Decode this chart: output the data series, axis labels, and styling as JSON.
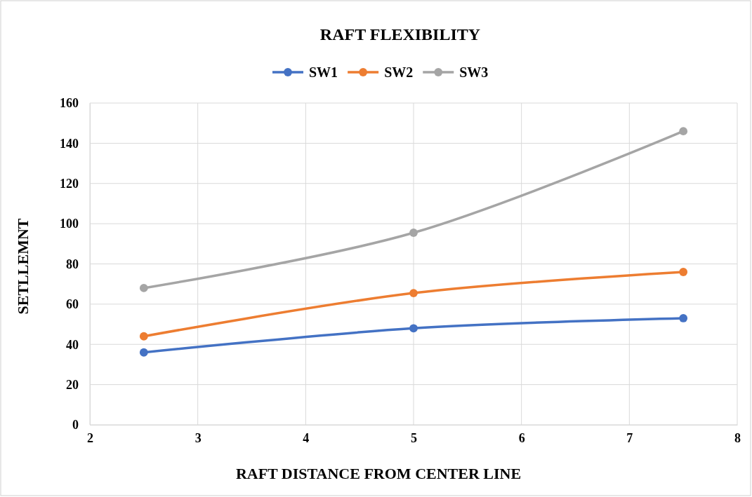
{
  "chart_data": {
    "type": "line",
    "title": "RAFT FLEXIBILITY",
    "xlabel": "RAFT DISTANCE FROM CENTER LINE",
    "ylabel": "SETLLEMNT",
    "x": [
      2.5,
      5,
      7.5
    ],
    "series": [
      {
        "name": "SW1",
        "color": "#4472c4",
        "values": [
          36,
          48,
          53
        ]
      },
      {
        "name": "SW2",
        "color": "#ed7d31",
        "values": [
          44,
          65.5,
          76
        ]
      },
      {
        "name": "SW3",
        "color": "#a5a5a5",
        "values": [
          68,
          95.5,
          146
        ]
      }
    ],
    "xlim": [
      2,
      8
    ],
    "xticks": [
      2,
      3,
      4,
      5,
      6,
      7,
      8
    ],
    "ylim": [
      0,
      160
    ],
    "yticks": [
      0,
      20,
      40,
      60,
      80,
      100,
      120,
      140,
      160
    ],
    "grid": true,
    "legend": "top",
    "marker": "circle",
    "line_style": "solid"
  }
}
